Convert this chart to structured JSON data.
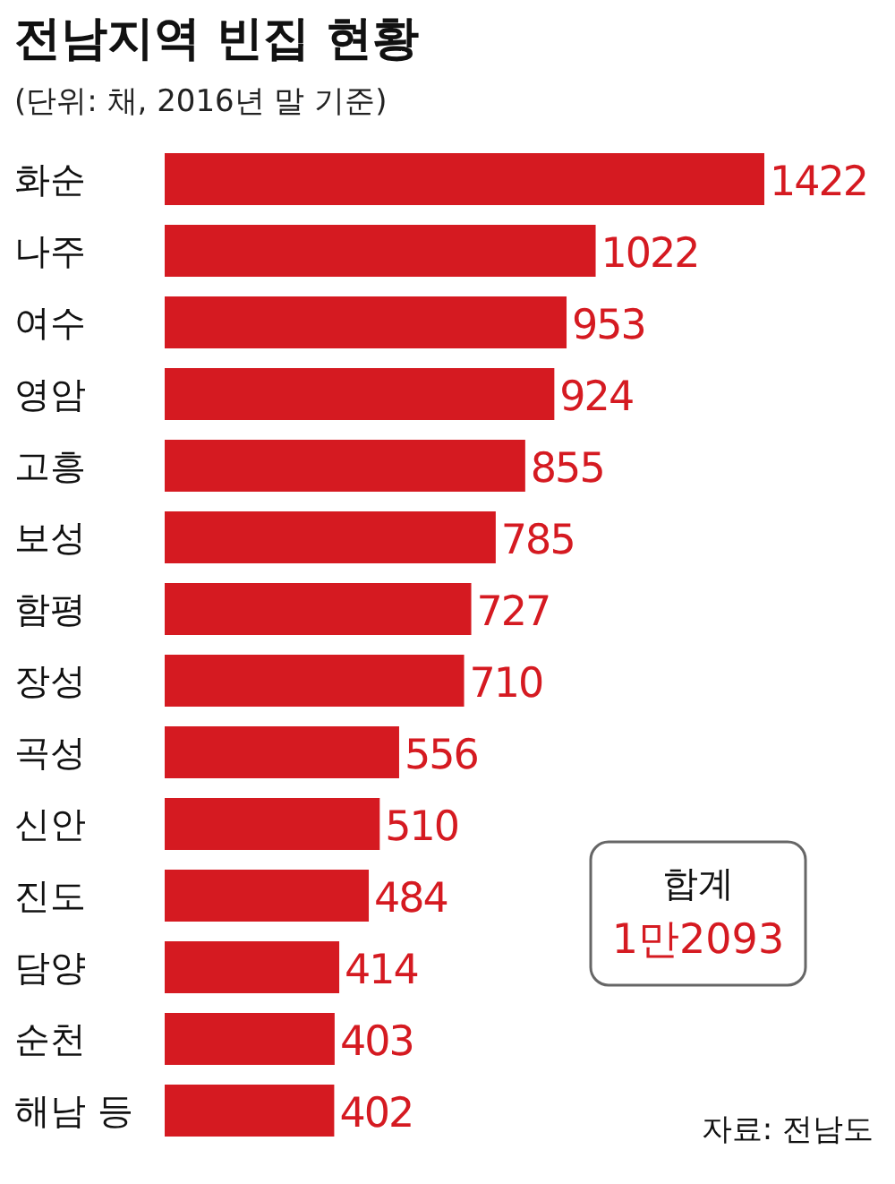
{
  "chart_data": {
    "type": "bar",
    "orientation": "horizontal",
    "title": "전남지역 빈집 현황",
    "subtitle": "(단위: 채, 2016년 말 기준)",
    "categories": [
      "화순",
      "나주",
      "여수",
      "영암",
      "고흥",
      "보성",
      "함평",
      "장성",
      "곡성",
      "신안",
      "진도",
      "담양",
      "순천",
      "해남 등"
    ],
    "values": [
      1422,
      1022,
      953,
      924,
      855,
      785,
      727,
      710,
      556,
      510,
      484,
      414,
      403,
      402
    ],
    "color": "#d51a21",
    "data_labels": true,
    "annotations": [
      "합계\n1만2093",
      "자료: 전남도"
    ]
  }
}
